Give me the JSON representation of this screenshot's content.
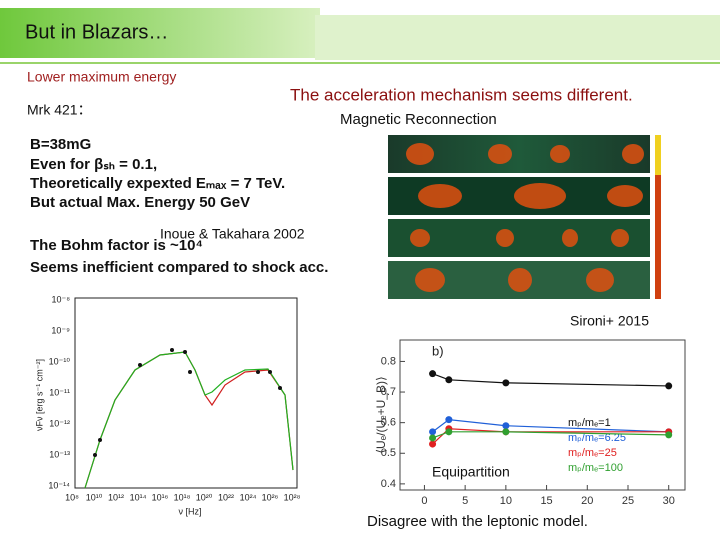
{
  "header": {
    "title": "But in Blazars…",
    "subtitle": "Lower maximum energy"
  },
  "source": "Mrk 421：",
  "heading": "The acceleration mechanism seems different.",
  "subheading": "Magnetic Reconnection",
  "bullets": [
    "B=38mG",
    "Even for βₛₕ = 0.1,",
    "Theoretically expexted Eₘₐₓ = 7 TeV.",
    "But actual Max. Energy  50 GeV",
    "The Bohm factor is ~10⁴",
    "Seems inefficient compared to shock acc."
  ],
  "sed": {
    "caption": "Inoue & Takahara 2002",
    "ylabel": "νFν [erg s⁻¹ cm⁻²]",
    "xlabel": "ν [Hz]",
    "yticks": [
      "10⁻⁸",
      "10⁻⁹",
      "10⁻¹⁰",
      "10⁻¹¹",
      "10⁻¹²",
      "10⁻¹³",
      "10⁻¹⁴"
    ],
    "xticks": [
      "10⁸",
      "10¹⁰",
      "10¹²",
      "10¹⁴",
      "10¹⁶",
      "10¹⁸",
      "10²⁰",
      "10²²",
      "10²⁴",
      "10²⁶",
      "10²⁸"
    ]
  },
  "simulation": {
    "caption": "Sironi+ 2015"
  },
  "chart_data": {
    "type": "line",
    "panel_label": "b)",
    "ylabel": "⟨Uₑ/(Uₑ+U_B)⟩",
    "annotation": "Equipartition",
    "x": [
      1,
      3,
      10,
      30
    ],
    "series": [
      {
        "name": "mₚ/mₑ=1",
        "color": "#111111",
        "values": [
          0.76,
          0.74,
          0.73,
          0.72
        ]
      },
      {
        "name": "mₚ/mₑ=6.25",
        "color": "#2060d8",
        "values": [
          0.57,
          0.61,
          0.59,
          0.57
        ]
      },
      {
        "name": "mₚ/mₑ=25",
        "color": "#e02020",
        "values": [
          0.53,
          0.58,
          0.57,
          0.57
        ]
      },
      {
        "name": "mₚ/mₑ=100",
        "color": "#30a030",
        "values": [
          0.55,
          0.57,
          0.57,
          0.56
        ]
      }
    ],
    "xlim": [
      -3,
      32
    ],
    "ylim": [
      0.38,
      0.87
    ],
    "xticks": [
      0,
      5,
      10,
      15,
      20,
      25,
      30
    ],
    "yticks": [
      0.4,
      0.5,
      0.6,
      0.7,
      0.8
    ]
  },
  "conclusion": "Disagree with the leptonic model."
}
